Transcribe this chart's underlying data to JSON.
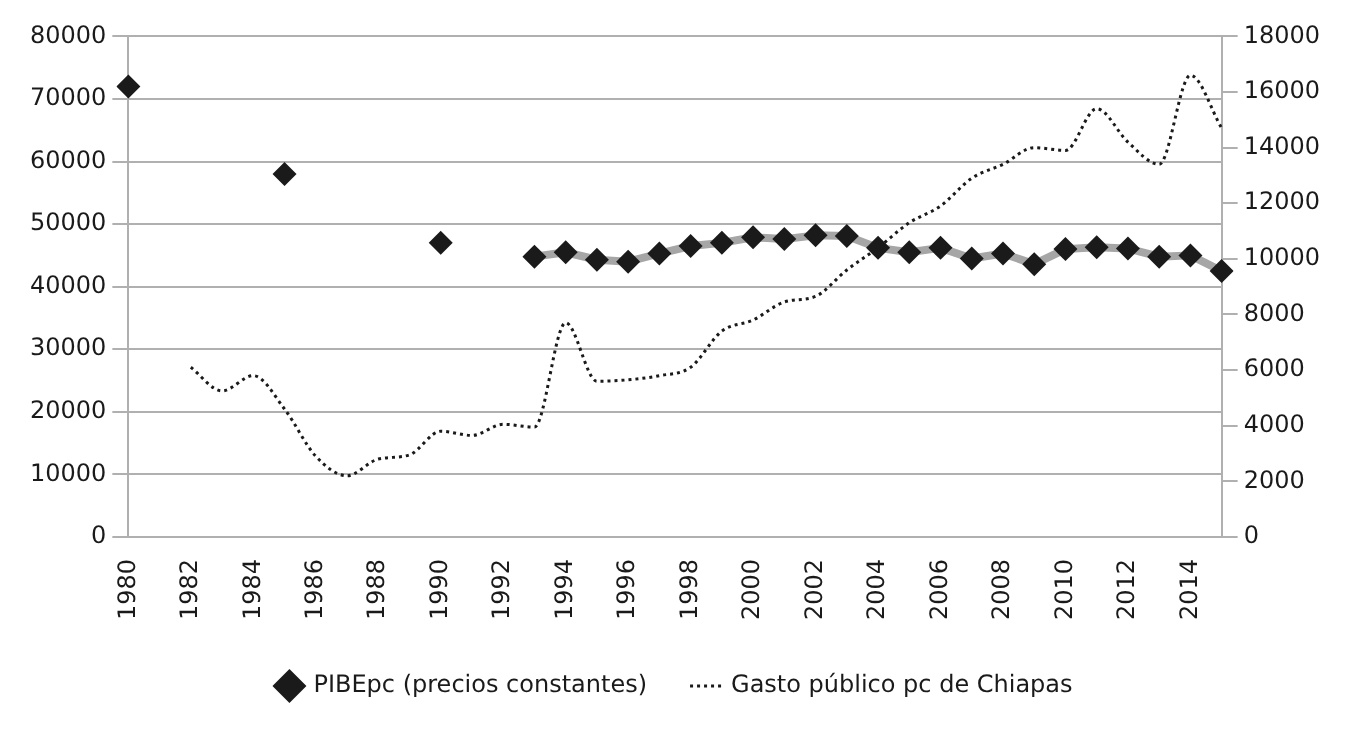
{
  "chart_data": {
    "type": "line",
    "categories": [
      "1980",
      null,
      "1982",
      null,
      "1984",
      null,
      "1986",
      null,
      "1988",
      null,
      "1990",
      null,
      "1992",
      null,
      "1994",
      null,
      "1996",
      null,
      "1998",
      null,
      "2000",
      null,
      "2002",
      null,
      "2004",
      null,
      "2006",
      null,
      "2008",
      null,
      "2010",
      null,
      "2012",
      null,
      "2014",
      null
    ],
    "series": [
      {
        "name": "PIBEpc (precios constantes)",
        "color": "#1a1a1a",
        "marker": "diamond",
        "values": [
          72000,
          null,
          null,
          null,
          null,
          58000,
          null,
          null,
          null,
          null,
          47000,
          null,
          null,
          44800,
          45500,
          44300,
          44000,
          45300,
          46500,
          47000,
          47900,
          47600,
          48200,
          48100,
          46200,
          45500,
          46200,
          44500,
          45300,
          43600,
          46000,
          46300,
          46100,
          44800,
          45000,
          42500
        ]
      },
      {
        "name": "Gasto público pc de Chiapas",
        "color": "#1a1a1a",
        "axis": "y2",
        "line_style": "dotted",
        "marker": "none",
        "values": [
          null,
          null,
          6100,
          5250,
          5800,
          4600,
          2900,
          2200,
          2800,
          2950,
          3800,
          3650,
          4050,
          3950,
          7700,
          5600,
          5650,
          5800,
          6100,
          7400,
          7800,
          8450,
          8650,
          9600,
          10400,
          11300,
          11900,
          12900,
          13400,
          14000,
          13900,
          15400,
          14200,
          13400,
          16600,
          14700
        ]
      }
    ],
    "ylim": [
      0,
      80000
    ],
    "yticks": [
      0,
      10000,
      20000,
      30000,
      40000,
      50000,
      60000,
      70000,
      80000
    ],
    "y2lim": [
      0,
      18000
    ],
    "y2ticks": [
      0,
      2000,
      4000,
      6000,
      8000,
      10000,
      12000,
      14000,
      16000,
      18000
    ],
    "grid": "y",
    "legend": "bottom"
  }
}
